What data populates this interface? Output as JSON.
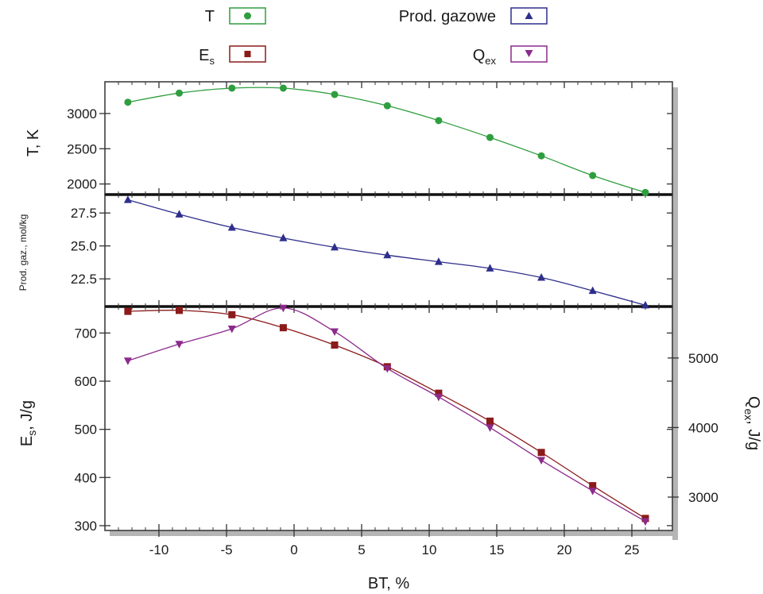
{
  "legend": [
    {
      "label": "T",
      "color": "#2e9e3e",
      "marker": "circle"
    },
    {
      "label": "Prod. gazowe",
      "color": "#2e2e8c",
      "marker": "triangle-up"
    },
    {
      "label": "E",
      "sub": "s",
      "color": "#8b1a1a",
      "marker": "square"
    },
    {
      "label": "Q",
      "sub": "ex",
      "color": "#8c2a8c",
      "marker": "triangle-down"
    }
  ],
  "chart_data": [
    {
      "type": "line",
      "panel": "top",
      "ylabel": "T, K",
      "ylim": [
        1850,
        3450
      ],
      "yticks": [
        "2000",
        "2500",
        "3000"
      ],
      "x": [
        -12.3,
        -8.5,
        -4.6,
        -0.8,
        3.0,
        6.9,
        10.7,
        14.5,
        18.3,
        22.1,
        26.0
      ],
      "series": [
        {
          "name": "T",
          "color": "#2e9e3e",
          "marker": "circle",
          "values": [
            3160,
            3290,
            3360,
            3360,
            3270,
            3110,
            2900,
            2660,
            2400,
            2120,
            1880
          ]
        }
      ]
    },
    {
      "type": "line",
      "panel": "middle",
      "ylabel": "Prod. gaz., mol/kg",
      "ylim": [
        20.4,
        28.9
      ],
      "yticks": [
        "22.5",
        "25.0",
        "27.5"
      ],
      "x": [
        -12.3,
        -8.5,
        -4.6,
        -0.8,
        3.0,
        6.9,
        10.7,
        14.5,
        18.3,
        22.1,
        26.0
      ],
      "series": [
        {
          "name": "Prod. gazowe",
          "color": "#2e2e8c",
          "marker": "triangle-up",
          "values": [
            28.5,
            27.4,
            26.4,
            25.6,
            24.9,
            24.3,
            23.8,
            23.3,
            22.6,
            21.6,
            20.5
          ]
        }
      ]
    },
    {
      "type": "line",
      "panel": "bottom",
      "ylabel": "E",
      "ylabel_sub": "s",
      "ylabel_suffix": ", J/g",
      "ylim": [
        290,
        755
      ],
      "yticks": [
        "300",
        "400",
        "500",
        "600",
        "700"
      ],
      "y2label": "Q",
      "y2label_sub": "ex",
      "y2label_suffix": ", J/g",
      "y2lim": [
        2520,
        5740
      ],
      "y2ticks": [
        "3000",
        "4000",
        "5000"
      ],
      "xlabel": "BT, %",
      "xlim": [
        -14,
        28
      ],
      "xticks": [
        "-10",
        "-5",
        "0",
        "5",
        "10",
        "15",
        "20",
        "25"
      ],
      "x": [
        -12.3,
        -8.5,
        -4.6,
        -0.8,
        3.0,
        6.9,
        10.7,
        14.5,
        18.3,
        22.1,
        26.0
      ],
      "series": [
        {
          "name": "E",
          "sub": "s",
          "color": "#8b1a1a",
          "marker": "square",
          "axis": "left",
          "values": [
            745,
            747,
            738,
            711,
            675,
            630,
            575,
            517,
            452,
            383,
            315
          ]
        },
        {
          "name": "Q",
          "sub": "ex",
          "color": "#8c2a8c",
          "marker": "triangle-down",
          "axis": "right",
          "values": [
            4960,
            5200,
            5420,
            5720,
            5380,
            4850,
            4440,
            4000,
            3530,
            3090,
            2650
          ]
        }
      ]
    }
  ]
}
